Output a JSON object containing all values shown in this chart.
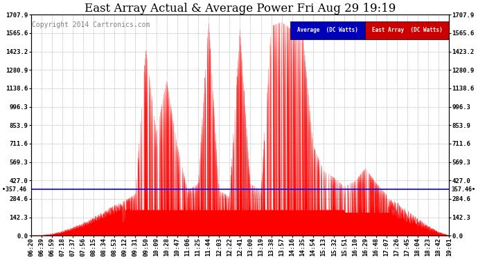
{
  "title": "East Array Actual & Average Power Fri Aug 29 19:19",
  "copyright": "Copyright 2014 Cartronics.com",
  "ylim": [
    0.0,
    1707.9
  ],
  "yticks": [
    0.0,
    142.3,
    284.6,
    427.0,
    569.3,
    711.6,
    853.9,
    996.3,
    1138.6,
    1280.9,
    1423.2,
    1565.6,
    1707.9
  ],
  "average_value": 357.46,
  "average_label": "Average  (DC Watts)",
  "east_label": "East Array  (DC Watts)",
  "background_color": "#ffffff",
  "plot_bg_color": "#ffffff",
  "grid_color": "#aaaaaa",
  "line_color_red": "#ff0000",
  "line_color_blue": "#0000ff",
  "x_labels": [
    "06:20",
    "06:39",
    "06:59",
    "07:18",
    "07:37",
    "07:56",
    "08:15",
    "08:34",
    "08:53",
    "09:12",
    "09:31",
    "09:50",
    "10:09",
    "10:28",
    "10:47",
    "11:06",
    "11:25",
    "11:44",
    "12:03",
    "12:22",
    "12:41",
    "13:00",
    "13:19",
    "13:38",
    "13:57",
    "14:16",
    "14:35",
    "14:54",
    "15:13",
    "15:32",
    "15:51",
    "16:10",
    "16:29",
    "16:48",
    "17:07",
    "17:26",
    "17:45",
    "18:04",
    "18:23",
    "18:42",
    "19:01"
  ],
  "title_fontsize": 12,
  "tick_fontsize": 6.5,
  "copyright_fontsize": 7
}
